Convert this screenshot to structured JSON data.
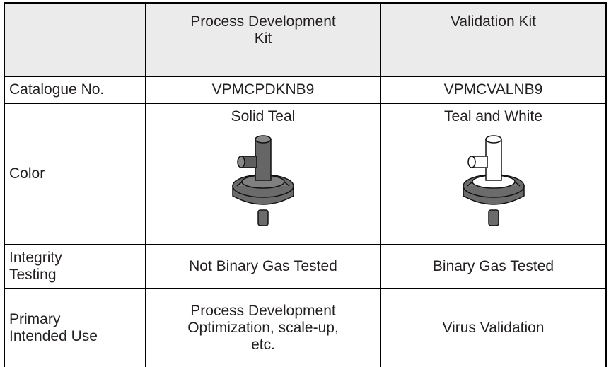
{
  "table": {
    "header": [
      [
        "Process Development",
        "Kit"
      ],
      [
        "Validation Kit"
      ]
    ],
    "rows": [
      {
        "label": [
          "Catalogue No."
        ],
        "cells": [
          [
            "VPMCPDKNB9"
          ],
          [
            "VPMCVALNB9"
          ]
        ]
      },
      {
        "label": [
          "Color"
        ],
        "cells": [
          [
            "Solid Teal"
          ],
          [
            "Teal and White"
          ]
        ]
      },
      {
        "label": [
          "Integrity",
          "Testing"
        ],
        "cells": [
          [
            "Not Binary Gas Tested"
          ],
          [
            "Binary Gas Tested"
          ]
        ]
      },
      {
        "label": [
          "Primary",
          "Intended Use"
        ],
        "cells": [
          [
            "Process Development",
            "Optimization, scale-up,",
            "etc."
          ],
          [
            "Virus Validation"
          ]
        ]
      }
    ]
  }
}
